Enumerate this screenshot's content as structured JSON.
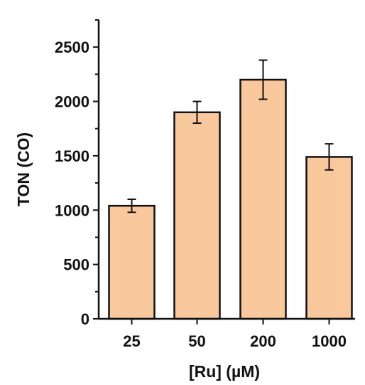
{
  "chart_data": {
    "type": "bar",
    "categories": [
      "25",
      "50",
      "200",
      "1000"
    ],
    "values": [
      1040,
      1900,
      2200,
      1490
    ],
    "errors": [
      60,
      100,
      180,
      120
    ],
    "xlabel": "[Ru] (µM)",
    "ylabel": "TON (CO)",
    "ylim": [
      0,
      2750
    ],
    "yticks": [
      "0",
      "500",
      "1000",
      "1500",
      "2000",
      "2500"
    ],
    "grid": false,
    "bar_color": "#f9c89d",
    "edge_color": "#111111"
  }
}
